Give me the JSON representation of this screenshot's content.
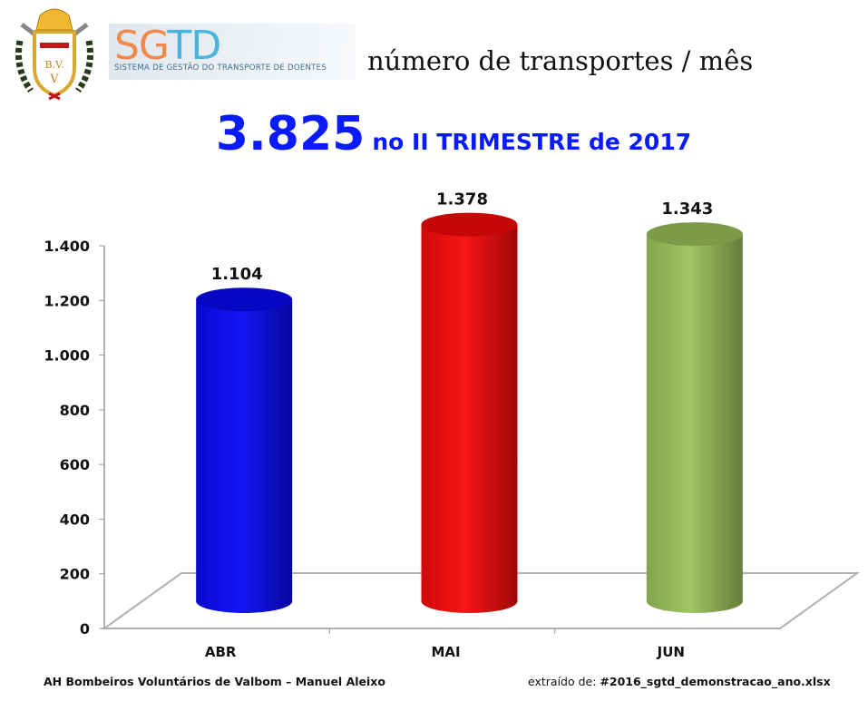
{
  "header": {
    "crest_text": "B.V. V",
    "logo_main_1": "SG",
    "logo_main_2": "TD",
    "logo_tagline": "SISTEMA DE GESTÃO DO TRANSPORTE DE DOENTES",
    "subtitle": "número de transportes / mês",
    "total": "3.825",
    "period": "no II TRIMESTRE de 2017"
  },
  "chart_data": {
    "type": "bar",
    "style": "3d-cylinder",
    "title": "número de transportes / mês",
    "categories": [
      "ABR",
      "MAI",
      "JUN"
    ],
    "values": [
      1104,
      1378,
      1343
    ],
    "value_labels": [
      "1.104",
      "1.378",
      "1.343"
    ],
    "colors": [
      "#0a0af5",
      "#f50a0a",
      "#9bc25a"
    ],
    "ylim": [
      0,
      1400
    ],
    "yticks": [
      0,
      200,
      400,
      600,
      800,
      1000,
      1200,
      1400
    ],
    "ytick_labels": [
      "0",
      "200",
      "400",
      "600",
      "800",
      "1.000",
      "1.200",
      "1.400"
    ],
    "xlabel": "",
    "ylabel": "",
    "grid": false,
    "legend": "none"
  },
  "footer": {
    "author": "AH Bombeiros Voluntários de Valbom – Manuel Aleixo",
    "source_label": "extraído de:",
    "source_file": "#2016_sgtd_demonstracao_ano.xlsx"
  }
}
